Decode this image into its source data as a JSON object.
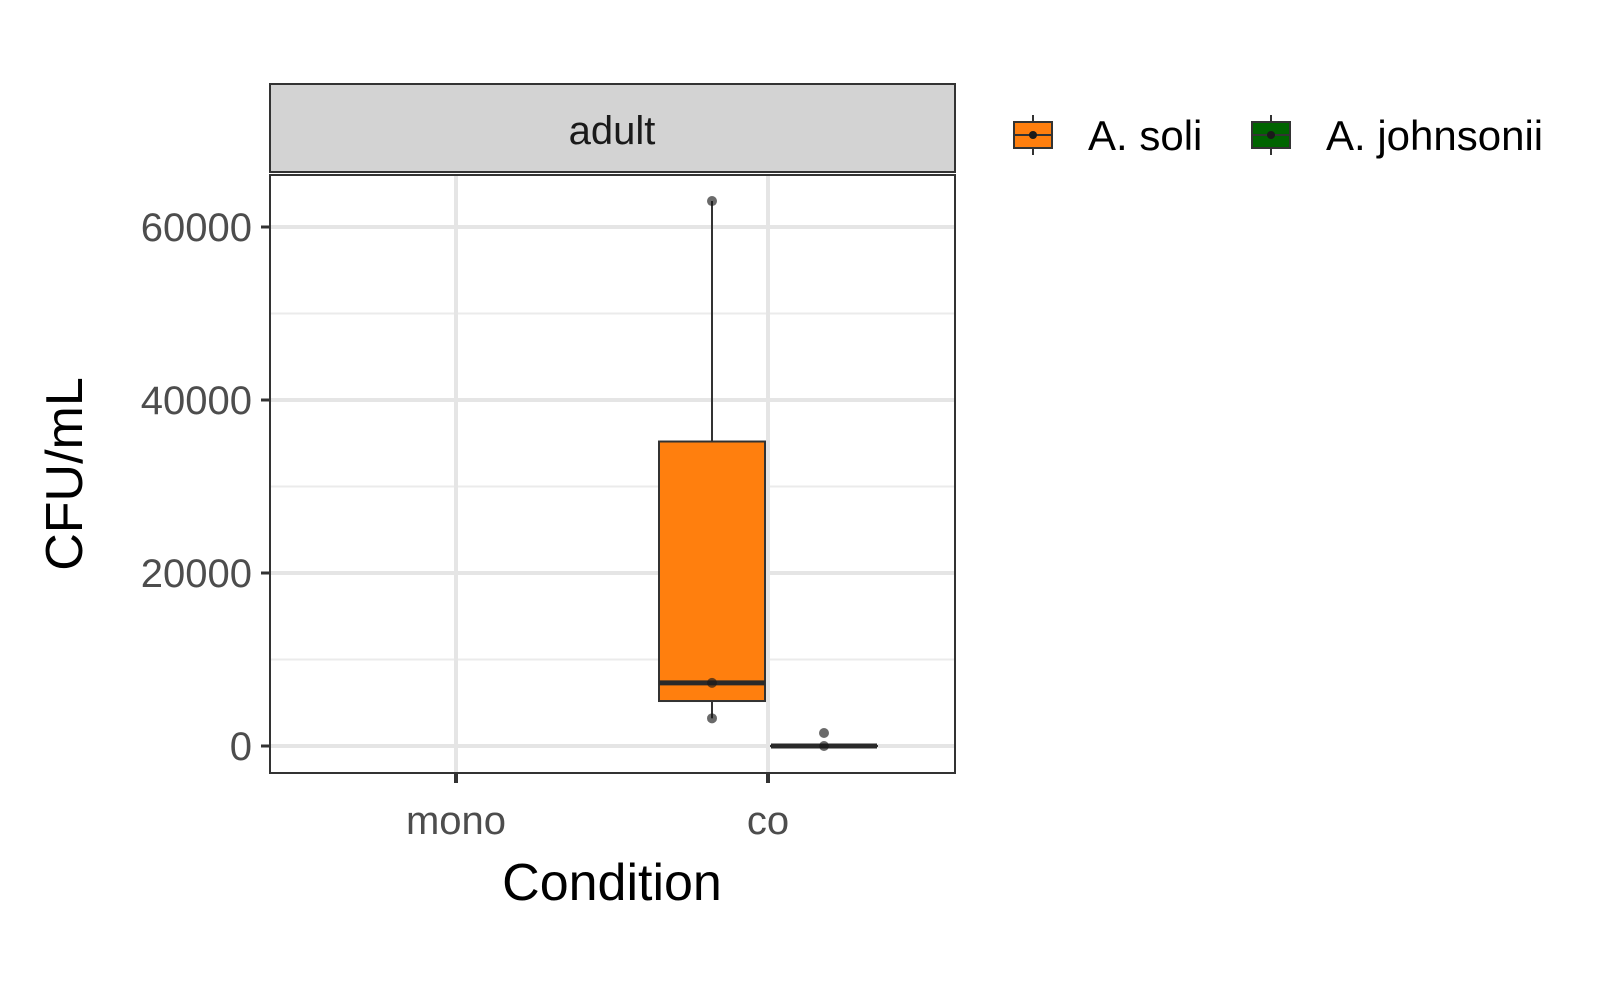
{
  "chart_data": {
    "type": "box",
    "facet": "adult",
    "xlabel": "Condition",
    "ylabel": "CFU/mL",
    "categories": [
      "mono",
      "co"
    ],
    "ylim": [
      -3000,
      66000
    ],
    "yticks": [
      0,
      20000,
      40000,
      60000
    ],
    "ytick_labels": [
      "0",
      "20000",
      "40000",
      "60000"
    ],
    "grid": true,
    "legend_position": "top-right",
    "series": [
      {
        "name": "A. soli",
        "color": "#FF7F0E",
        "boxes": [
          {
            "category": "co",
            "whisker_low": 3200,
            "q1": 5200,
            "median": 7300,
            "q3": 35200,
            "whisker_high": 63000,
            "points": [
              63000,
              7300,
              3200
            ]
          }
        ]
      },
      {
        "name": "A. johnsonii",
        "color": "#006400",
        "boxes": [
          {
            "category": "co",
            "whisker_low": 0,
            "q1": 0,
            "median": 0,
            "q3": 0,
            "whisker_high": 0,
            "points": [
              1500,
              0
            ]
          }
        ]
      }
    ]
  }
}
